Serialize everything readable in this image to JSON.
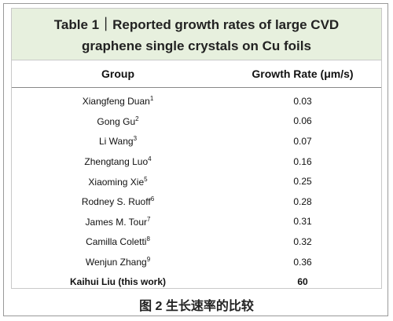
{
  "table": {
    "title_lines": [
      "Table 1｜Reported growth rates of large CVD",
      "graphene single crystals on Cu foils"
    ],
    "columns": [
      "Group",
      "Growth Rate (μm/s)"
    ],
    "rows": [
      {
        "group": "Xiangfeng Duan",
        "ref": "1",
        "rate": "0.03"
      },
      {
        "group": "Gong Gu",
        "ref": "2",
        "rate": "0.06"
      },
      {
        "group": "Li Wang",
        "ref": "3",
        "rate": "0.07"
      },
      {
        "group": "Zhengtang Luo",
        "ref": "4",
        "rate": "0.16"
      },
      {
        "group": "Xiaoming Xie",
        "ref": "5",
        "rate": "0.25"
      },
      {
        "group": "Rodney S. Ruoff",
        "ref": "6",
        "rate": "0.28"
      },
      {
        "group": "James M. Tour",
        "ref": "7",
        "rate": "0.31"
      },
      {
        "group": "Camilla Coletti",
        "ref": "8",
        "rate": "0.32"
      },
      {
        "group": "Wenjun Zhang",
        "ref": "9",
        "rate": "0.36"
      },
      {
        "group": "Kaihui Liu (this work)",
        "rate": "60"
      }
    ]
  },
  "caption": "图 2 生长速率的比较"
}
